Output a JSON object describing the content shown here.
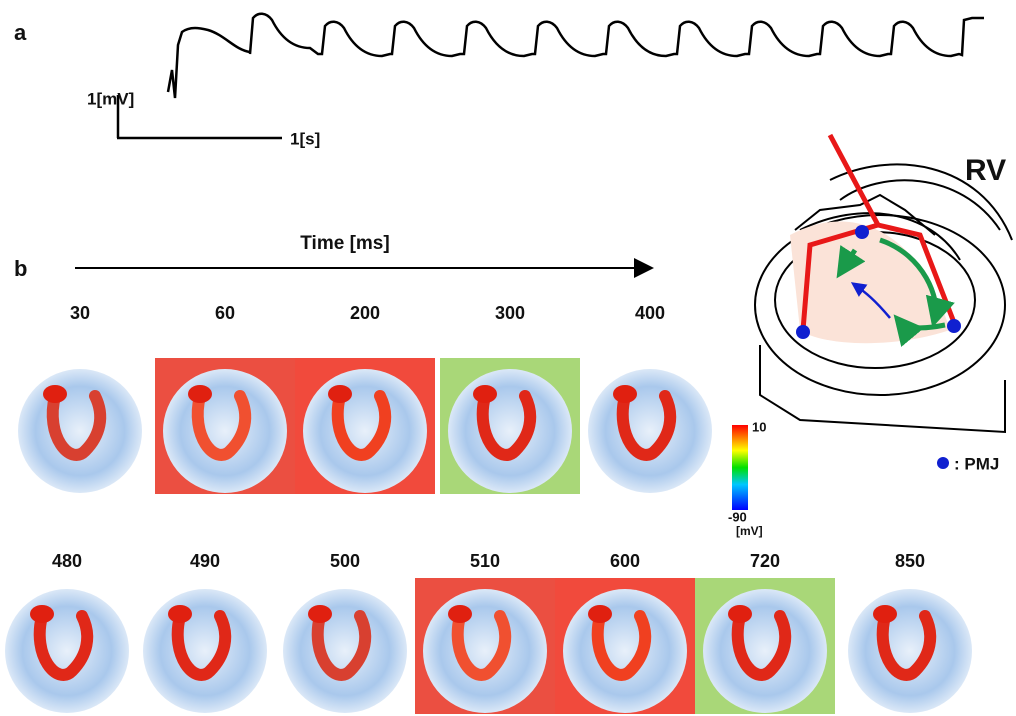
{
  "panel_a": {
    "label": "a",
    "scale_y": "1[mV]",
    "scale_x": "1[s]"
  },
  "panel_b": {
    "label": "b",
    "axis_title": "Time [ms]",
    "frames_row1": [
      30,
      60,
      200,
      300,
      400
    ],
    "frames_row2": [
      480,
      490,
      500,
      510,
      600,
      720,
      850
    ],
    "colorbar": {
      "max": 10,
      "min": -90,
      "unit": "[mV]"
    }
  },
  "diagram": {
    "label": "RV",
    "legend": ": PMJ"
  }
}
